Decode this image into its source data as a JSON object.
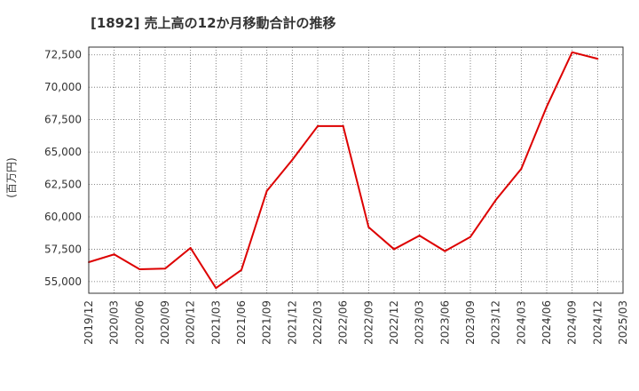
{
  "chart_data": {
    "type": "line",
    "title": "[1892]  売上高の12か月移動合計の推移",
    "ylabel": "(百万円)",
    "xlabel": "",
    "ylim": [
      54100,
      73100
    ],
    "grid": true,
    "x_tick_labels": [
      "2019/12",
      "2020/03",
      "2020/06",
      "2020/09",
      "2020/12",
      "2021/03",
      "2021/06",
      "2021/09",
      "2021/12",
      "2022/03",
      "2022/06",
      "2022/09",
      "2022/12",
      "2023/03",
      "2023/06",
      "2023/09",
      "2023/12",
      "2024/03",
      "2024/06",
      "2024/09",
      "2024/12",
      "2025/03"
    ],
    "y_tick_values": [
      55000,
      57500,
      60000,
      62500,
      65000,
      67500,
      70000,
      72500
    ],
    "y_tick_labels": [
      "55,000",
      "57,500",
      "60,000",
      "62,500",
      "65,000",
      "67,500",
      "70,000",
      "72,500"
    ],
    "series": [
      {
        "name": "売上高(12か月移動合計)",
        "color": "#dd0000",
        "x": [
          "2019/12",
          "2020/03",
          "2020/06",
          "2020/09",
          "2020/12",
          "2021/03",
          "2021/06",
          "2021/09",
          "2021/12",
          "2022/03",
          "2022/06",
          "2022/09",
          "2022/12",
          "2023/03",
          "2023/06",
          "2023/09",
          "2023/12",
          "2024/03",
          "2024/06",
          "2024/09",
          "2024/12"
        ],
        "values": [
          56500,
          57100,
          55950,
          56000,
          57600,
          54500,
          55900,
          62000,
          64400,
          67000,
          67000,
          59200,
          57500,
          58550,
          57350,
          58450,
          61300,
          63700,
          68500,
          72700,
          72200
        ]
      }
    ]
  }
}
